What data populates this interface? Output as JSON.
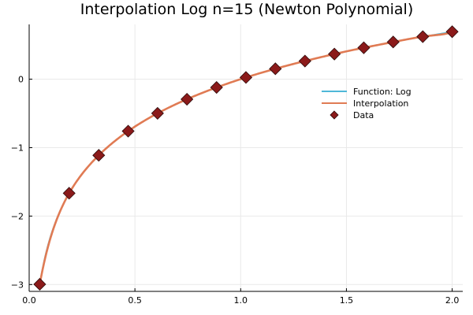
{
  "chart_data": {
    "type": "line",
    "title": "Interpolation Log n=15  (Newton Polynomial)",
    "xlabel": "",
    "ylabel": "",
    "xlim": [
      0.0,
      2.05
    ],
    "ylim": [
      -3.1,
      0.8
    ],
    "xticks": [
      0.0,
      0.5,
      1.0,
      1.5,
      2.0
    ],
    "xtick_labels": [
      "0.0",
      "0.5",
      "1.0",
      "1.5",
      "2.0"
    ],
    "yticks": [
      -3,
      -2,
      -1,
      0
    ],
    "ytick_labels": [
      "−3",
      "−2",
      "−1",
      "0"
    ],
    "grid": true,
    "legend_position": "right",
    "series": [
      {
        "name": "Function: Log",
        "kind": "line",
        "color": "#4fb8d8",
        "function": "log",
        "x_range": [
          0.05,
          2.0
        ]
      },
      {
        "name": "Interpolation",
        "kind": "line",
        "color": "#e07b54",
        "x": [
          0.05,
          0.189,
          0.329,
          0.468,
          0.607,
          0.746,
          0.886,
          1.025,
          1.164,
          1.304,
          1.443,
          1.582,
          1.721,
          1.861,
          2.0
        ],
        "y": [
          -2.996,
          -1.666,
          -1.112,
          -0.759,
          -0.499,
          -0.293,
          -0.121,
          0.025,
          0.152,
          0.265,
          0.367,
          0.459,
          0.543,
          0.621,
          0.693
        ]
      },
      {
        "name": "Data",
        "kind": "scatter",
        "marker": "diamond",
        "color": "#8b1a1a",
        "x": [
          0.05,
          0.189,
          0.329,
          0.468,
          0.607,
          0.746,
          0.886,
          1.025,
          1.164,
          1.304,
          1.443,
          1.582,
          1.721,
          1.861,
          2.0
        ],
        "y": [
          -2.996,
          -1.666,
          -1.112,
          -0.759,
          -0.499,
          -0.293,
          -0.121,
          0.025,
          0.152,
          0.265,
          0.367,
          0.459,
          0.543,
          0.621,
          0.693
        ]
      }
    ]
  }
}
